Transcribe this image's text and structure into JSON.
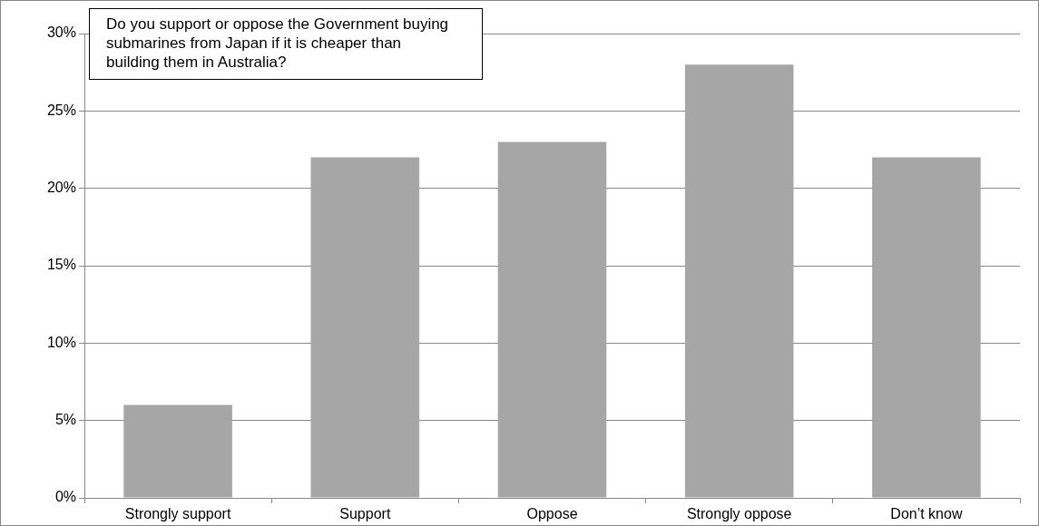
{
  "chart_data": {
    "type": "bar",
    "categories": [
      "Strongly support",
      "Support",
      "Oppose",
      "Strongly oppose",
      "Don’t know"
    ],
    "values": [
      6,
      22,
      23,
      28,
      22
    ],
    "color": "#a6a6a6",
    "ylim": [
      0,
      30
    ],
    "yticks": [
      {
        "value": 0,
        "label": "0%"
      },
      {
        "value": 5,
        "label": "5%"
      },
      {
        "value": 10,
        "label": "10%"
      },
      {
        "value": 15,
        "label": "15%"
      },
      {
        "value": 20,
        "label": "20%"
      },
      {
        "value": 25,
        "label": "25%"
      },
      {
        "value": 30,
        "label": "30%"
      }
    ],
    "grid": "y",
    "annotations": [
      "Do you support or oppose the Government buying submarines from Japan if it is cheaper than building them in Australia?"
    ]
  }
}
